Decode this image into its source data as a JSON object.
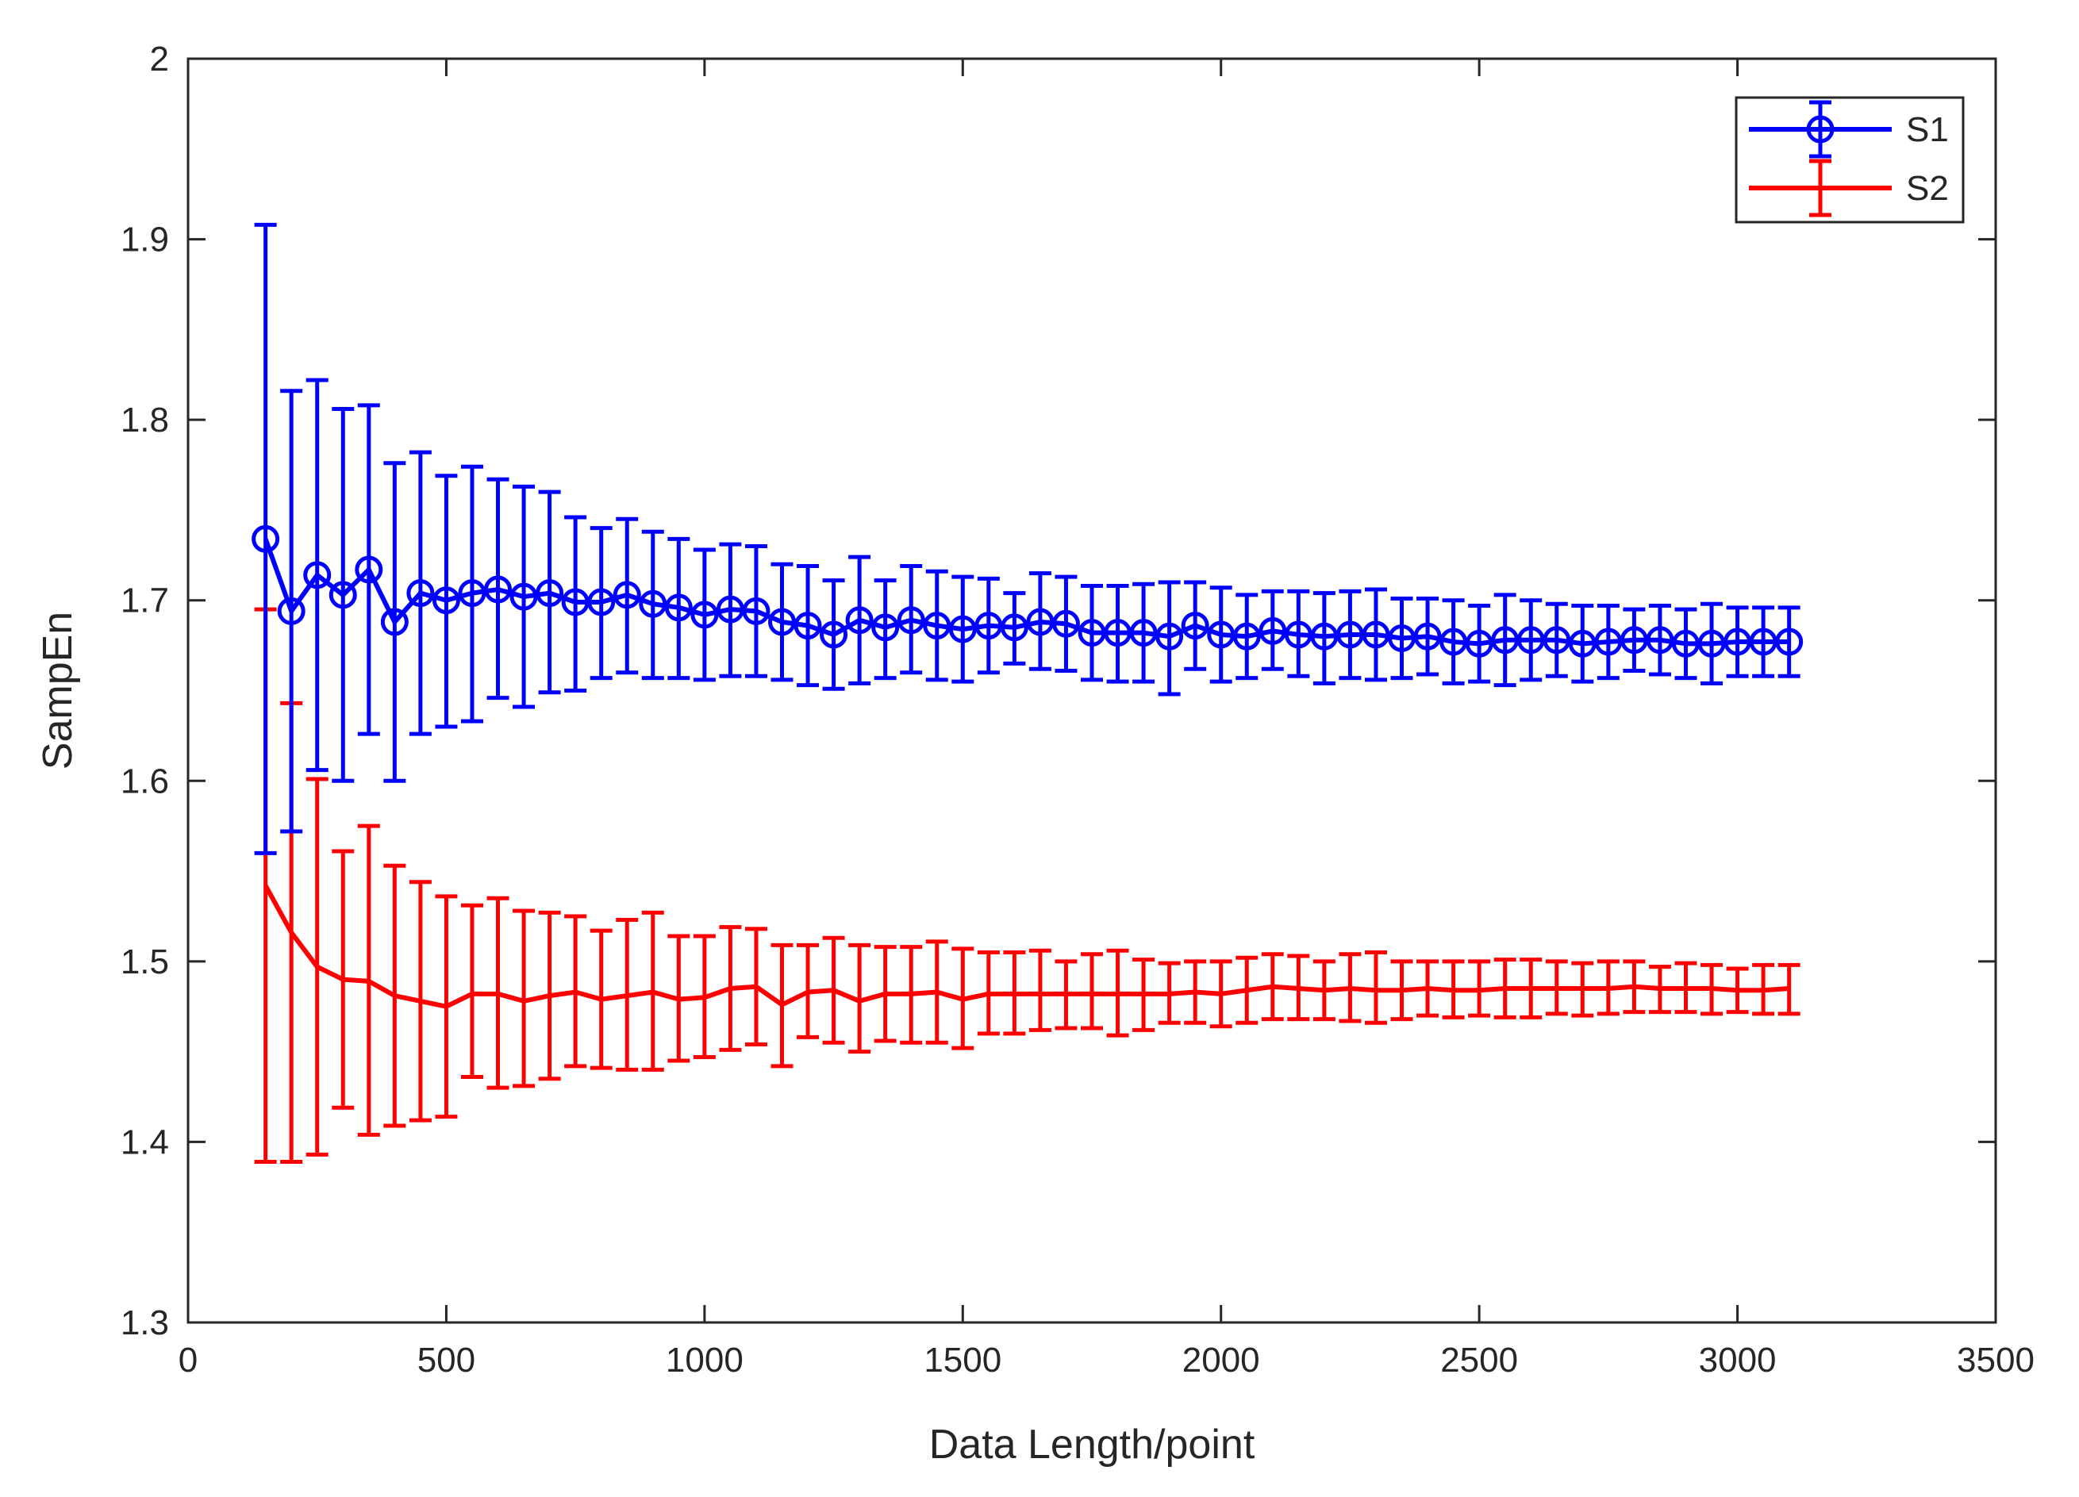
{
  "chart_data": {
    "type": "line",
    "title": "",
    "xlabel": "Data Length/point",
    "ylabel": "SampEn",
    "xlim": [
      0,
      3500
    ],
    "ylim": [
      1.3,
      2.0
    ],
    "xticks": [
      0,
      500,
      1000,
      1500,
      2000,
      2500,
      3000,
      3500
    ],
    "xtick_labels": [
      "0",
      "500",
      "1000",
      "1500",
      "2000",
      "2500",
      "3000",
      "3500"
    ],
    "yticks": [
      1.3,
      1.4,
      1.5,
      1.6,
      1.7,
      1.8,
      1.9,
      2.0
    ],
    "ytick_labels": [
      "1.3",
      "1.4",
      "1.5",
      "1.6",
      "1.7",
      "1.8",
      "1.9",
      "2"
    ],
    "grid": false,
    "legend_position": "top-right",
    "colors": {
      "S1": "#0000ff",
      "S2": "#ff0000",
      "axes": "#262626"
    },
    "x": [
      150,
      200,
      250,
      300,
      350,
      400,
      450,
      500,
      550,
      600,
      650,
      700,
      750,
      800,
      850,
      900,
      950,
      1000,
      1050,
      1100,
      1150,
      1200,
      1250,
      1300,
      1350,
      1400,
      1450,
      1500,
      1550,
      1600,
      1650,
      1700,
      1750,
      1800,
      1850,
      1900,
      1950,
      2000,
      2050,
      2100,
      2150,
      2200,
      2250,
      2300,
      2350,
      2400,
      2450,
      2500,
      2550,
      2600,
      2650,
      2700,
      2750,
      2800,
      2850,
      2900,
      2950,
      3000,
      3050,
      3100
    ],
    "series": [
      {
        "name": "S1",
        "marker": "circle",
        "values": [
          1.734,
          1.694,
          1.714,
          1.703,
          1.717,
          1.688,
          1.704,
          1.7,
          1.704,
          1.706,
          1.702,
          1.704,
          1.699,
          1.699,
          1.703,
          1.698,
          1.696,
          1.692,
          1.695,
          1.694,
          1.688,
          1.686,
          1.681,
          1.689,
          1.685,
          1.689,
          1.686,
          1.684,
          1.686,
          1.685,
          1.688,
          1.687,
          1.682,
          1.682,
          1.682,
          1.68,
          1.686,
          1.681,
          1.68,
          1.683,
          1.681,
          1.68,
          1.681,
          1.681,
          1.679,
          1.68,
          1.677,
          1.676,
          1.678,
          1.678,
          1.678,
          1.676,
          1.677,
          1.678,
          1.678,
          1.676,
          1.676,
          1.677,
          1.677,
          1.677
        ],
        "upper": [
          1.908,
          1.816,
          1.822,
          1.806,
          1.808,
          1.776,
          1.782,
          1.769,
          1.774,
          1.767,
          1.763,
          1.76,
          1.746,
          1.74,
          1.745,
          1.738,
          1.734,
          1.728,
          1.731,
          1.73,
          1.72,
          1.719,
          1.711,
          1.724,
          1.711,
          1.719,
          1.716,
          1.713,
          1.712,
          1.704,
          1.715,
          1.713,
          1.708,
          1.708,
          1.709,
          1.71,
          1.71,
          1.707,
          1.703,
          1.705,
          1.705,
          1.704,
          1.705,
          1.706,
          1.701,
          1.701,
          1.7,
          1.697,
          1.703,
          1.7,
          1.698,
          1.697,
          1.697,
          1.695,
          1.697,
          1.695,
          1.698,
          1.696,
          1.696,
          1.696
        ],
        "lower": [
          1.56,
          1.572,
          1.606,
          1.6,
          1.626,
          1.6,
          1.626,
          1.63,
          1.633,
          1.646,
          1.641,
          1.649,
          1.65,
          1.657,
          1.66,
          1.657,
          1.657,
          1.656,
          1.658,
          1.658,
          1.656,
          1.653,
          1.651,
          1.654,
          1.657,
          1.66,
          1.656,
          1.655,
          1.66,
          1.665,
          1.662,
          1.661,
          1.656,
          1.655,
          1.655,
          1.648,
          1.662,
          1.655,
          1.657,
          1.662,
          1.658,
          1.654,
          1.657,
          1.656,
          1.657,
          1.659,
          1.654,
          1.655,
          1.653,
          1.656,
          1.658,
          1.655,
          1.657,
          1.661,
          1.659,
          1.657,
          1.654,
          1.658,
          1.658,
          1.658
        ]
      },
      {
        "name": "S2",
        "marker": "none",
        "values": [
          1.542,
          1.516,
          1.497,
          1.49,
          1.489,
          1.481,
          1.478,
          1.475,
          1.482,
          1.482,
          1.478,
          1.481,
          1.483,
          1.479,
          1.481,
          1.483,
          1.479,
          1.48,
          1.485,
          1.486,
          1.476,
          1.483,
          1.484,
          1.478,
          1.482,
          1.482,
          1.483,
          1.479,
          1.482,
          1.482,
          1.482,
          1.482,
          1.482,
          1.482,
          1.482,
          1.482,
          1.483,
          1.482,
          1.484,
          1.486,
          1.485,
          1.484,
          1.485,
          1.484,
          1.484,
          1.485,
          1.484,
          1.484,
          1.485,
          1.485,
          1.485,
          1.485,
          1.485,
          1.486,
          1.485,
          1.485,
          1.485,
          1.484,
          1.484,
          1.485
        ],
        "upper": [
          1.695,
          1.643,
          1.601,
          1.561,
          1.575,
          1.553,
          1.544,
          1.536,
          1.531,
          1.535,
          1.528,
          1.527,
          1.525,
          1.517,
          1.523,
          1.527,
          1.514,
          1.514,
          1.519,
          1.518,
          1.509,
          1.509,
          1.513,
          1.509,
          1.508,
          1.508,
          1.511,
          1.507,
          1.505,
          1.505,
          1.506,
          1.5,
          1.504,
          1.506,
          1.501,
          1.499,
          1.5,
          1.5,
          1.502,
          1.504,
          1.503,
          1.5,
          1.504,
          1.505,
          1.5,
          1.5,
          1.5,
          1.5,
          1.501,
          1.501,
          1.5,
          1.499,
          1.5,
          1.5,
          1.497,
          1.499,
          1.498,
          1.496,
          1.498,
          1.498
        ],
        "lower": [
          1.389,
          1.389,
          1.393,
          1.419,
          1.404,
          1.409,
          1.412,
          1.414,
          1.436,
          1.43,
          1.431,
          1.435,
          1.442,
          1.441,
          1.44,
          1.44,
          1.445,
          1.447,
          1.451,
          1.454,
          1.442,
          1.458,
          1.455,
          1.45,
          1.456,
          1.455,
          1.455,
          1.452,
          1.46,
          1.46,
          1.462,
          1.463,
          1.463,
          1.459,
          1.462,
          1.466,
          1.466,
          1.464,
          1.466,
          1.468,
          1.468,
          1.468,
          1.467,
          1.466,
          1.468,
          1.47,
          1.469,
          1.47,
          1.469,
          1.469,
          1.471,
          1.47,
          1.471,
          1.472,
          1.472,
          1.472,
          1.471,
          1.472,
          1.471,
          1.471
        ]
      }
    ]
  }
}
